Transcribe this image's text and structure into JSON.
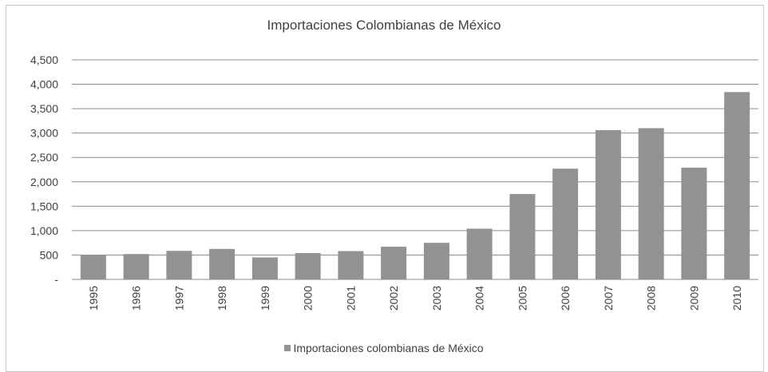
{
  "chart_data": {
    "type": "bar",
    "title": "Importaciones Colombianas de México",
    "categories": [
      "1995",
      "1996",
      "1997",
      "1998",
      "1999",
      "2000",
      "2001",
      "2002",
      "2003",
      "2004",
      "2005",
      "2006",
      "2007",
      "2008",
      "2009",
      "2010"
    ],
    "series": [
      {
        "name": "Importaciones colombianas de México",
        "values": [
          505,
          520,
          585,
          625,
          450,
          540,
          580,
          670,
          750,
          1040,
          1750,
          2270,
          3060,
          3100,
          2290,
          3840
        ],
        "color": "#929292"
      }
    ],
    "y_ticks": [
      "-",
      "500",
      "1,000",
      "1,500",
      "2,000",
      "2,500",
      "3,000",
      "3,500",
      "4,000",
      "4,500"
    ],
    "ylim": [
      0,
      4500
    ],
    "grid": true,
    "gridline_color": "#8c8c8c",
    "legend_position": "bottom"
  }
}
